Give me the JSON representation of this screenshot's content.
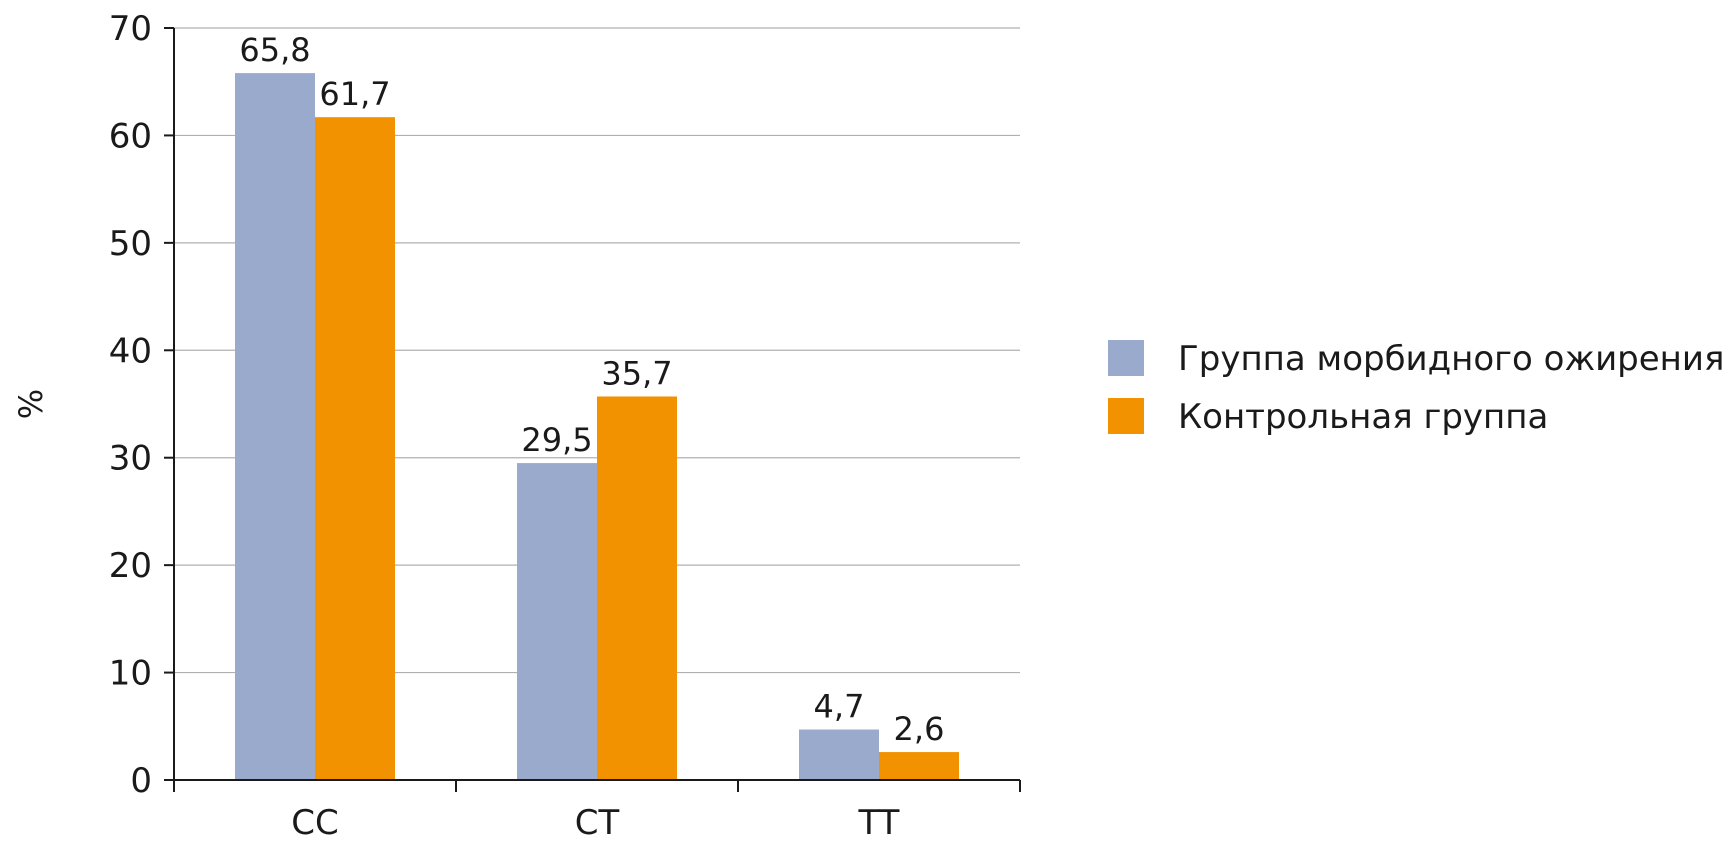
{
  "chart_data": {
    "type": "bar",
    "title": "",
    "xlabel": "",
    "ylabel": "%",
    "ylim": [
      0,
      70
    ],
    "yticks": [
      0,
      10,
      20,
      30,
      40,
      50,
      60,
      70
    ],
    "categories": [
      "CC",
      "CT",
      "TT"
    ],
    "series": [
      {
        "name": "Группа морбидного ожирения",
        "color": "#9aaacd",
        "values": [
          65.8,
          29.5,
          4.7
        ],
        "labels": [
          "65,8",
          "29,5",
          "4,7"
        ]
      },
      {
        "name": "Контрольная группа",
        "color": "#f39200",
        "values": [
          61.7,
          35.7,
          2.6
        ],
        "labels": [
          "61,7",
          "35,7",
          "2,6"
        ]
      }
    ],
    "grid": true,
    "legend_position": "right"
  }
}
